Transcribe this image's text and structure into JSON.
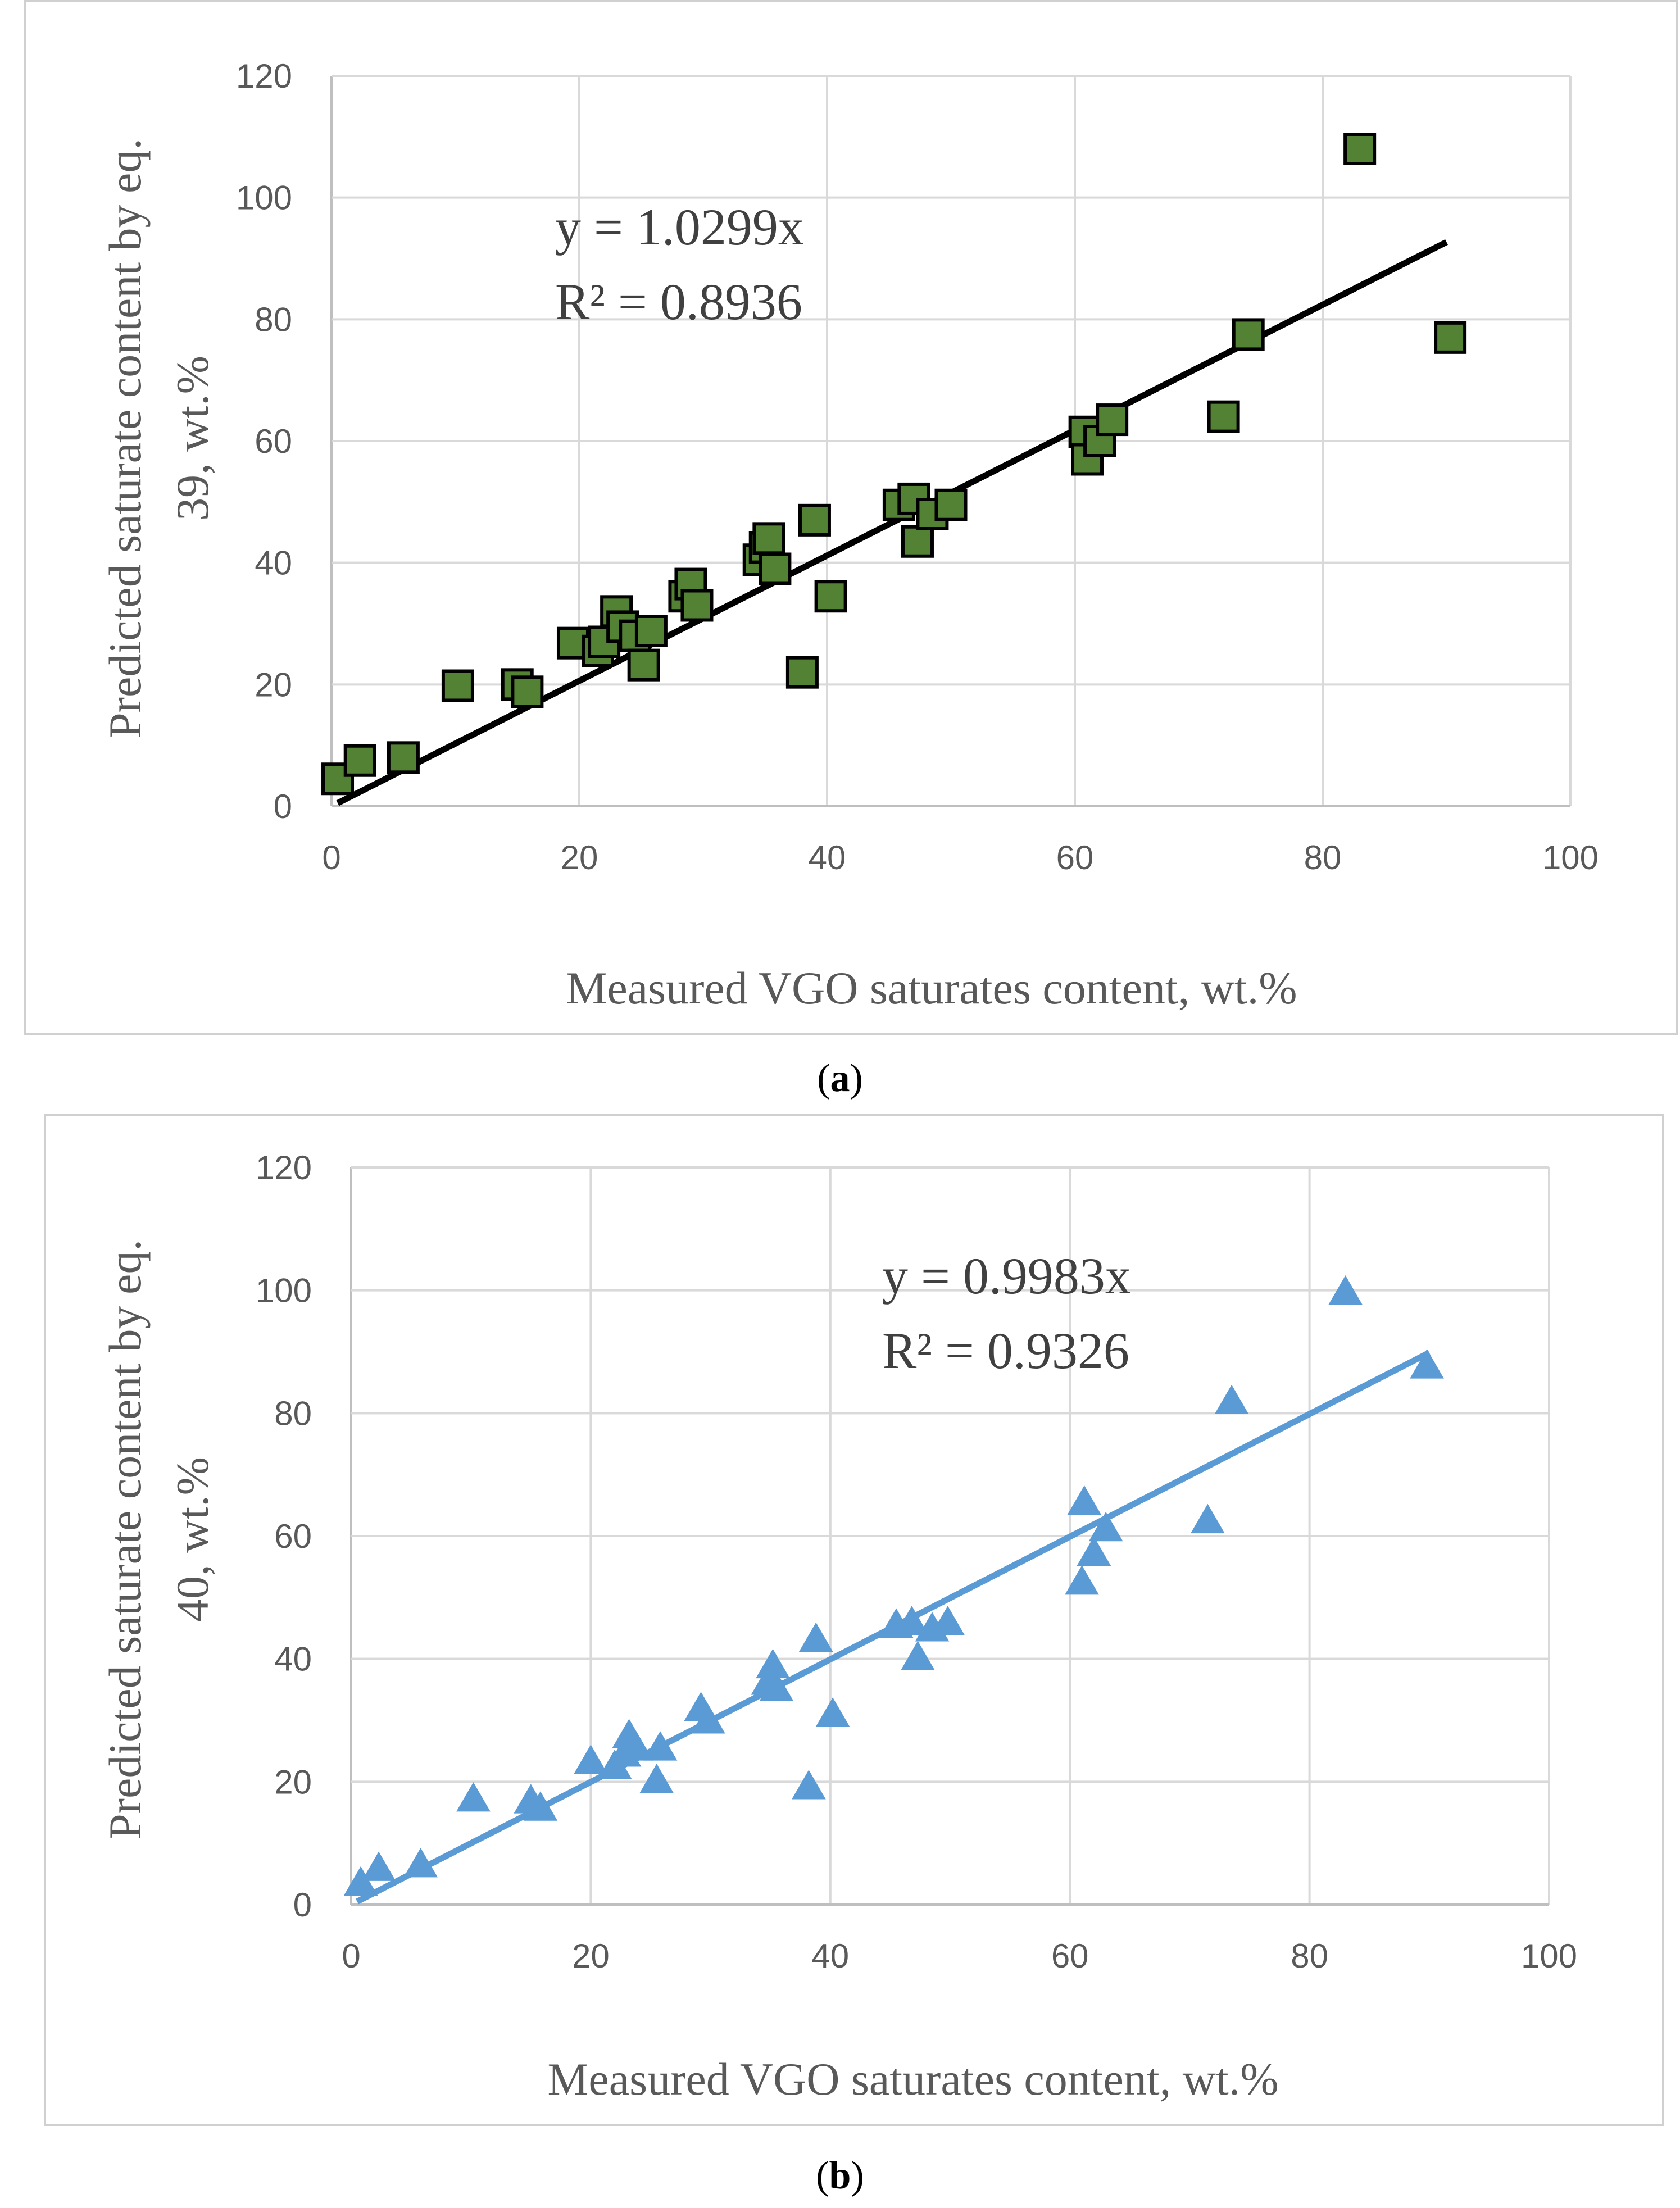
{
  "colors": {
    "panel_a_marker": "#548235",
    "panel_a_marker_edge": "#000000",
    "panel_a_trend": "#000000",
    "panel_b_marker": "#5b9bd5",
    "panel_b_trend": "#5b9bd5",
    "grid": "#d9d9d9",
    "text": "#595959"
  },
  "chart_data": [
    {
      "type": "scatter",
      "panel": "a",
      "caption": {
        "open": "(",
        "letter": "a",
        "close": ")"
      },
      "marker": "square",
      "xlabel": "Measured VGO saturates content, wt.%",
      "ylabel_line1": "Predicted saturate content by eq.",
      "ylabel_line2": "39, wt.%",
      "xlim": [
        0,
        100
      ],
      "ylim": [
        0,
        120
      ],
      "xticks": [
        "0",
        "20",
        "40",
        "60",
        "80",
        "100"
      ],
      "yticks": [
        "0",
        "20",
        "40",
        "60",
        "80",
        "100",
        "120"
      ],
      "grid": true,
      "equation": "y = 1.0299x",
      "r_squared": "R² = 0.8936",
      "trendline": {
        "slope": 1.0299,
        "x_range": [
          0.5,
          90
        ]
      },
      "points": [
        [
          0.5,
          4.5
        ],
        [
          2.3,
          7.5
        ],
        [
          5.8,
          8
        ],
        [
          10.2,
          19.8
        ],
        [
          15,
          20
        ],
        [
          15.8,
          18.8
        ],
        [
          19.5,
          26.8
        ],
        [
          21.5,
          25.5
        ],
        [
          22,
          27
        ],
        [
          23,
          32
        ],
        [
          23.5,
          29.5
        ],
        [
          24.5,
          28
        ],
        [
          25.2,
          23.2
        ],
        [
          25.8,
          28.8
        ],
        [
          28.5,
          34.5
        ],
        [
          29,
          36.5
        ],
        [
          29.5,
          33
        ],
        [
          34.5,
          40.5
        ],
        [
          35,
          42.5
        ],
        [
          35.3,
          44
        ],
        [
          35.8,
          39
        ],
        [
          38,
          22
        ],
        [
          39,
          47
        ],
        [
          40.3,
          34.5
        ],
        [
          45.8,
          49.5
        ],
        [
          47,
          50.5
        ],
        [
          47.3,
          43.5
        ],
        [
          48.5,
          48
        ],
        [
          50,
          49.5
        ],
        [
          60.8,
          61.5
        ],
        [
          61,
          57
        ],
        [
          62,
          60
        ],
        [
          63,
          63.5
        ],
        [
          72,
          64
        ],
        [
          74,
          77.5
        ],
        [
          83,
          108
        ],
        [
          90.3,
          77
        ]
      ]
    },
    {
      "type": "scatter",
      "panel": "b",
      "caption": {
        "open": "(",
        "letter": "b",
        "close": ")"
      },
      "marker": "triangle",
      "xlabel": "Measured VGO saturates content, wt.%",
      "ylabel_line1": "Predicted saturate content by eq.",
      "ylabel_line2": "40, wt.%",
      "xlim": [
        0,
        100
      ],
      "ylim": [
        0,
        120
      ],
      "xticks": [
        "0",
        "20",
        "40",
        "60",
        "80",
        "100"
      ],
      "yticks": [
        "0",
        "20",
        "40",
        "60",
        "80",
        "100",
        "120"
      ],
      "grid": true,
      "equation": "y = 0.9983x",
      "r_squared": "R² = 0.9326",
      "trendline": {
        "slope": 0.9983,
        "x_range": [
          0.5,
          90
        ]
      },
      "points": [
        [
          0.8,
          3.8
        ],
        [
          2.3,
          6.2
        ],
        [
          5.8,
          6.8
        ],
        [
          10.2,
          17.5
        ],
        [
          15,
          17.2
        ],
        [
          15.8,
          16
        ],
        [
          20,
          23.6
        ],
        [
          22,
          22.8
        ],
        [
          22.8,
          24.8
        ],
        [
          23.2,
          27.8
        ],
        [
          23.8,
          25.8
        ],
        [
          25.5,
          20.5
        ],
        [
          25.8,
          25.8
        ],
        [
          29.2,
          32.2
        ],
        [
          29.8,
          30.2
        ],
        [
          34.8,
          36.5
        ],
        [
          35.2,
          39.2
        ],
        [
          35.5,
          35.5
        ],
        [
          38.2,
          19.5
        ],
        [
          38.8,
          43.5
        ],
        [
          40.2,
          31.3
        ],
        [
          45.5,
          45.8
        ],
        [
          46.8,
          46.2
        ],
        [
          47.3,
          40.5
        ],
        [
          48.5,
          45.2
        ],
        [
          49.8,
          46.2
        ],
        [
          61,
          52.8
        ],
        [
          61.2,
          65.8
        ],
        [
          62,
          57.5
        ],
        [
          63,
          61.5
        ],
        [
          71.5,
          62.8
        ],
        [
          73.5,
          82.2
        ],
        [
          83,
          100
        ],
        [
          89.8,
          88
        ]
      ]
    }
  ]
}
